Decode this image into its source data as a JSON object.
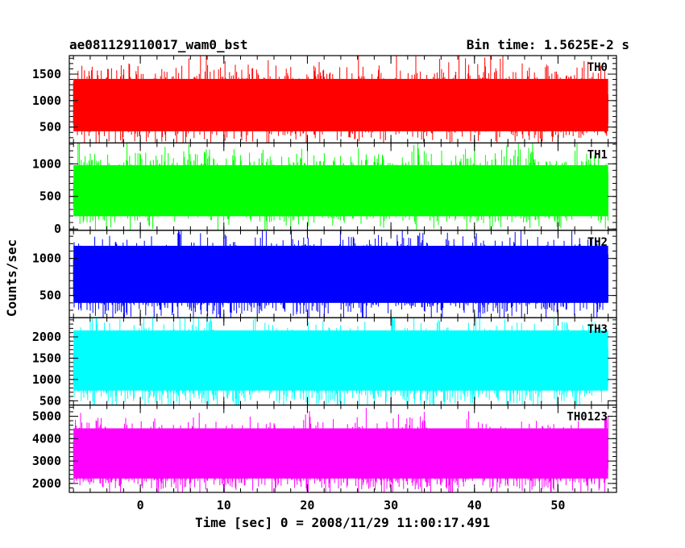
{
  "header": {
    "left_title": "ae081129110017_wam0_bst",
    "right_title": "Bin time: 1.5625E-2 s"
  },
  "chart_data": {
    "type": "line",
    "xlabel": "Time [sec] 0 = 2008/11/29 11:00:17.491",
    "ylabel": "Counts/sec",
    "xlim": [
      -8.5,
      57
    ],
    "x_data_range": [
      -8,
      56
    ],
    "x_ticks": [
      0,
      10,
      20,
      30,
      40,
      50
    ],
    "x_tick_labels": [
      "0",
      "10",
      "20",
      "30",
      "40",
      "50"
    ],
    "panels": [
      {
        "label": "TH0",
        "color": "#ff0000",
        "ylim": [
          200,
          1850
        ],
        "y_ticks": [
          500,
          1000,
          1500
        ],
        "y_tick_labels": [
          "500",
          "1000",
          "1500"
        ],
        "series": {
          "mean": 900,
          "low_envelope": 300,
          "high_envelope": 1500,
          "peak": 1850
        }
      },
      {
        "label": "TH1",
        "color": "#00ff00",
        "ylim": [
          -20,
          1320
        ],
        "y_ticks": [
          0,
          500,
          1000
        ],
        "y_tick_labels": [
          "0",
          "500",
          "1000"
        ],
        "series": {
          "mean": 580,
          "low_envelope": 100,
          "high_envelope": 1050,
          "peak": 1320
        }
      },
      {
        "label": "TH2",
        "color": "#0000ff",
        "ylim": [
          200,
          1380
        ],
        "y_ticks": [
          500,
          1000
        ],
        "y_tick_labels": [
          "500",
          "1000"
        ],
        "series": {
          "mean": 720,
          "low_envelope": 320,
          "high_envelope": 1250,
          "peak": 1380
        }
      },
      {
        "label": "TH3",
        "color": "#00ffff",
        "ylim": [
          400,
          2450
        ],
        "y_ticks": [
          500,
          1000,
          1500,
          2000
        ],
        "y_tick_labels": [
          "500",
          "1000",
          "1500",
          "2000"
        ],
        "series": {
          "mean": 1300,
          "low_envelope": 600,
          "high_envelope": 2300,
          "peak": 2450
        }
      },
      {
        "label": "TH0123",
        "color": "#ff00ff",
        "ylim": [
          1600,
          5500
        ],
        "y_ticks": [
          2000,
          3000,
          4000,
          5000
        ],
        "y_tick_labels": [
          "2000",
          "3000",
          "4000",
          "5000"
        ],
        "series": {
          "mean": 3100,
          "low_envelope": 2000,
          "high_envelope": 4700,
          "peak": 5300
        }
      }
    ]
  }
}
